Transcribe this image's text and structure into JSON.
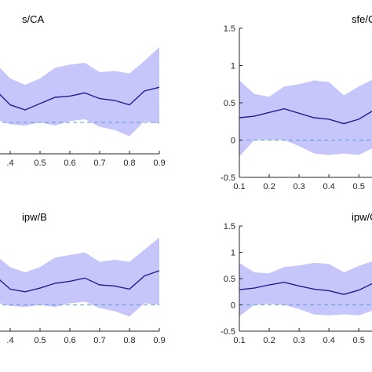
{
  "chart_data": [
    {
      "type": "line",
      "title": "s/CA",
      "x": [
        0.35,
        0.4,
        0.45,
        0.5,
        0.55,
        0.6,
        0.65,
        0.7,
        0.75,
        0.8,
        0.85,
        0.9
      ],
      "series": [
        {
          "role": "estimate",
          "values": [
            0.52,
            0.28,
            0.2,
            0.3,
            0.4,
            0.42,
            0.47,
            0.38,
            0.35,
            0.28,
            0.5,
            0.56
          ]
        }
      ],
      "band": {
        "lower": [
          0.05,
          -0.03,
          -0.05,
          0.0,
          -0.05,
          0.02,
          0.05,
          -0.07,
          -0.12,
          -0.22,
          0.02,
          -0.02
        ],
        "upper": [
          0.95,
          0.7,
          0.6,
          0.7,
          0.87,
          0.92,
          0.95,
          0.8,
          0.82,
          0.78,
          0.98,
          1.2
        ]
      },
      "reference_line": 0,
      "xlim": [
        0.35,
        0.9
      ],
      "ylim": [
        -0.5,
        1.5
      ],
      "xticks": [
        0.4,
        0.5,
        0.6,
        0.7,
        0.8,
        0.9
      ],
      "xtick_labels": [
        ".4",
        "0.5",
        "0.6",
        "0.7",
        "0.8",
        "0.9"
      ],
      "yticks": [],
      "ytick_labels": []
    },
    {
      "type": "line",
      "title": "sfe/C",
      "x": [
        0.1,
        0.15,
        0.2,
        0.25,
        0.3,
        0.35,
        0.4,
        0.45,
        0.5,
        0.55
      ],
      "series": [
        {
          "role": "estimate",
          "values": [
            0.3,
            0.32,
            0.37,
            0.42,
            0.36,
            0.3,
            0.28,
            0.22,
            0.28,
            0.4
          ]
        }
      ],
      "band": {
        "lower": [
          -0.22,
          0.0,
          0.0,
          0.0,
          -0.08,
          -0.18,
          -0.2,
          -0.18,
          -0.2,
          -0.1
        ],
        "upper": [
          0.8,
          0.62,
          0.58,
          0.72,
          0.75,
          0.8,
          0.78,
          0.6,
          0.72,
          0.82
        ]
      },
      "reference_line": 0,
      "xlim": [
        0.1,
        0.56
      ],
      "ylim": [
        -0.5,
        1.5
      ],
      "xticks": [
        0.1,
        0.2,
        0.3,
        0.4,
        0.5
      ],
      "xtick_labels": [
        "0.1",
        "0.2",
        "0.3",
        "0.4",
        "0.5"
      ],
      "yticks": [
        -0.5,
        0,
        0.5,
        1,
        1.5
      ],
      "ytick_labels": [
        "-0.5",
        "0",
        "0.5",
        "1",
        "1.5"
      ]
    },
    {
      "type": "line",
      "title": "ipw/B",
      "x": [
        0.35,
        0.4,
        0.45,
        0.5,
        0.55,
        0.6,
        0.65,
        0.7,
        0.75,
        0.8,
        0.85,
        0.9
      ],
      "series": [
        {
          "role": "estimate",
          "values": [
            0.55,
            0.3,
            0.25,
            0.32,
            0.41,
            0.45,
            0.51,
            0.38,
            0.36,
            0.3,
            0.55,
            0.65
          ]
        }
      ],
      "band": {
        "lower": [
          0.05,
          -0.02,
          -0.04,
          0.0,
          -0.04,
          0.03,
          0.06,
          -0.06,
          -0.12,
          -0.22,
          0.03,
          0.0
        ],
        "upper": [
          0.95,
          0.72,
          0.62,
          0.72,
          0.9,
          0.95,
          1.0,
          0.82,
          0.86,
          0.82,
          1.05,
          1.28
        ]
      },
      "reference_line": 0,
      "xlim": [
        0.35,
        0.9
      ],
      "ylim": [
        -0.5,
        1.5
      ],
      "xticks": [
        0.4,
        0.5,
        0.6,
        0.7,
        0.8,
        0.9
      ],
      "xtick_labels": [
        ".4",
        "0.5",
        "0.6",
        "0.7",
        "0.8",
        "0.9"
      ],
      "yticks": [],
      "ytick_labels": []
    },
    {
      "type": "line",
      "title": "ipw/C",
      "x": [
        0.1,
        0.15,
        0.2,
        0.25,
        0.3,
        0.35,
        0.4,
        0.45,
        0.5,
        0.55
      ],
      "series": [
        {
          "role": "estimate",
          "values": [
            0.29,
            0.32,
            0.38,
            0.43,
            0.36,
            0.3,
            0.27,
            0.2,
            0.28,
            0.42
          ]
        }
      ],
      "band": {
        "lower": [
          -0.22,
          0.0,
          0.02,
          0.0,
          -0.08,
          -0.18,
          -0.2,
          -0.18,
          -0.2,
          -0.1
        ],
        "upper": [
          0.8,
          0.62,
          0.6,
          0.72,
          0.75,
          0.8,
          0.78,
          0.62,
          0.74,
          0.84
        ]
      },
      "reference_line": 0,
      "xlim": [
        0.1,
        0.56
      ],
      "ylim": [
        -0.5,
        1.5
      ],
      "xticks": [
        0.1,
        0.2,
        0.3,
        0.4,
        0.5
      ],
      "xtick_labels": [
        "0.1",
        "0.2",
        "0.3",
        "0.4",
        "0.5"
      ],
      "yticks": [
        -0.5,
        0,
        0.5,
        1,
        1.5
      ],
      "ytick_labels": [
        "-0.5",
        "0",
        "0.5",
        "1",
        "1.5"
      ]
    }
  ],
  "colors": {
    "band_fill": "#c6c6fa",
    "line": "#1f1f8f",
    "reference": "#5b9bd5",
    "axis": "#262626"
  }
}
